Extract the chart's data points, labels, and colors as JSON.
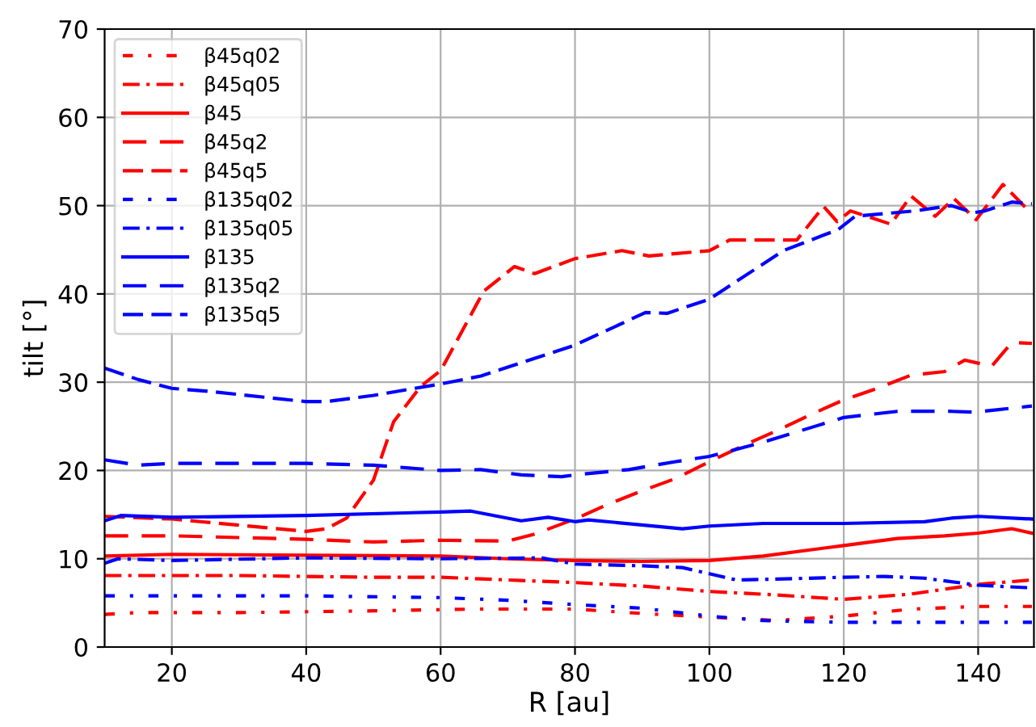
{
  "chart_data": {
    "type": "line",
    "xlabel": "R [au]",
    "ylabel": "tilt [°]",
    "xlim": [
      10,
      148.3
    ],
    "ylim": [
      0,
      70
    ],
    "xticks": [
      20,
      40,
      60,
      80,
      100,
      120,
      140
    ],
    "yticks": [
      0,
      10,
      20,
      30,
      40,
      50,
      60,
      70
    ],
    "grid": true,
    "legend": "top left",
    "marker": "none",
    "series": [
      {
        "name": "β45q02",
        "color": "#ff0000",
        "line_style": "loosely dashdotted",
        "x": [
          10,
          15,
          30,
          50,
          65,
          80,
          90,
          100,
          110,
          120,
          130,
          140,
          148
        ],
        "values": [
          3.7,
          3.9,
          3.9,
          4.1,
          4.3,
          4.3,
          3.8,
          3.4,
          3.0,
          3.5,
          4.3,
          4.6,
          4.6
        ]
      },
      {
        "name": "β45q05",
        "color": "#ff0000",
        "line_style": "dashdot",
        "x": [
          10,
          30,
          50,
          60,
          70,
          80,
          90,
          100,
          110,
          120,
          130,
          140,
          148
        ],
        "values": [
          8.1,
          8.1,
          7.9,
          7.9,
          7.6,
          7.3,
          6.9,
          6.3,
          5.9,
          5.4,
          6.0,
          7.1,
          7.6
        ]
      },
      {
        "name": "β45",
        "color": "#ff0000",
        "line_style": "solid",
        "x": [
          10,
          20,
          40,
          60,
          70,
          80,
          90,
          100,
          108,
          115,
          120,
          128,
          135,
          140,
          145,
          148
        ],
        "values": [
          10.3,
          10.5,
          10.4,
          10.3,
          10.0,
          9.8,
          9.7,
          9.8,
          10.3,
          11.0,
          11.5,
          12.3,
          12.6,
          12.9,
          13.4,
          12.9
        ]
      },
      {
        "name": "β45q2",
        "color": "#ff0000",
        "line_style": "loosely dashed",
        "x": [
          10,
          20,
          30,
          40,
          50,
          60,
          70,
          74,
          80,
          85,
          90,
          95,
          100,
          105,
          110,
          115,
          120,
          125,
          130,
          135,
          138,
          142,
          145,
          148
        ],
        "values": [
          12.6,
          12.6,
          12.4,
          12.2,
          11.9,
          12.1,
          12.0,
          12.8,
          14.5,
          16.2,
          17.7,
          19.1,
          21.0,
          22.8,
          24.5,
          26.3,
          28.0,
          29.3,
          30.8,
          31.2,
          32.5,
          31.8,
          34.5,
          34.4
        ]
      },
      {
        "name": "β45q5",
        "color": "#ff0000",
        "line_style": "dashed",
        "x": [
          10,
          20,
          30,
          40,
          43,
          46,
          50,
          53,
          57,
          60,
          63,
          66.4,
          71,
          74,
          80,
          87,
          91,
          100,
          103,
          113,
          117,
          119,
          121,
          127,
          130,
          133.6,
          136.4,
          139.7,
          143.7,
          147.3
        ],
        "values": [
          14.8,
          14.5,
          13.8,
          13.1,
          13.4,
          14.6,
          18.9,
          25.5,
          29.5,
          31.3,
          35.5,
          40.3,
          43.1,
          42.3,
          44.0,
          44.9,
          44.3,
          44.9,
          46.1,
          46.1,
          49.9,
          48.2,
          49.4,
          47.9,
          51.1,
          48.8,
          50.8,
          48.4,
          52.4,
          49.6
        ]
      },
      {
        "name": "β135q02",
        "color": "#0000ff",
        "line_style": "loosely dashdotted",
        "x": [
          10,
          20,
          40,
          60,
          70,
          80,
          90,
          100,
          108,
          120,
          148
        ],
        "values": [
          5.8,
          5.8,
          5.8,
          5.6,
          5.3,
          4.8,
          4.4,
          3.5,
          3.0,
          2.8,
          2.8
        ]
      },
      {
        "name": "β135q05",
        "color": "#0000ff",
        "line_style": "dashdot",
        "x": [
          10,
          12,
          20,
          40,
          60,
          75,
          80,
          90,
          96,
          100,
          104,
          110,
          120,
          126,
          132,
          140,
          148
        ],
        "values": [
          9.5,
          10.0,
          9.8,
          10.1,
          10.0,
          10.1,
          9.4,
          9.2,
          9.0,
          8.3,
          7.6,
          7.7,
          7.9,
          8.0,
          7.8,
          7.0,
          6.7
        ]
      },
      {
        "name": "β135",
        "color": "#0000ff",
        "line_style": "solid",
        "x": [
          10,
          12.4,
          20,
          40,
          60,
          64.5,
          72,
          76,
          80,
          82,
          96,
          100,
          108,
          120,
          132,
          136,
          140,
          148
        ],
        "values": [
          14.3,
          14.9,
          14.7,
          14.9,
          15.3,
          15.4,
          14.3,
          14.7,
          14.2,
          14.4,
          13.4,
          13.7,
          14.0,
          14.0,
          14.2,
          14.6,
          14.8,
          14.5
        ]
      },
      {
        "name": "β135q2",
        "color": "#0000ff",
        "line_style": "loosely dashed",
        "x": [
          10,
          15,
          20,
          40,
          50,
          60,
          66,
          72,
          78,
          80,
          88,
          95,
          100,
          108,
          120,
          128,
          136,
          139.5,
          148
        ],
        "values": [
          21.2,
          20.6,
          20.8,
          20.8,
          20.6,
          20.0,
          20.1,
          19.5,
          19.3,
          19.5,
          20.1,
          21.0,
          21.6,
          23.2,
          26.0,
          26.7,
          26.7,
          26.6,
          27.3
        ]
      },
      {
        "name": "β135q5",
        "color": "#0000ff",
        "line_style": "dashed",
        "x": [
          10,
          15,
          20,
          25,
          40,
          43,
          50,
          60,
          66,
          72,
          80,
          90.5,
          93.7,
          100,
          111,
          119.2,
          121.7,
          130.5,
          136,
          139.3,
          141,
          145,
          148
        ],
        "values": [
          31.6,
          30.3,
          29.3,
          29.0,
          27.8,
          27.8,
          28.5,
          29.8,
          30.7,
          32.2,
          34.2,
          37.9,
          37.8,
          39.4,
          44.9,
          47.3,
          48.8,
          49.4,
          50.0,
          49.2,
          49.4,
          50.4,
          50.2
        ]
      }
    ]
  }
}
